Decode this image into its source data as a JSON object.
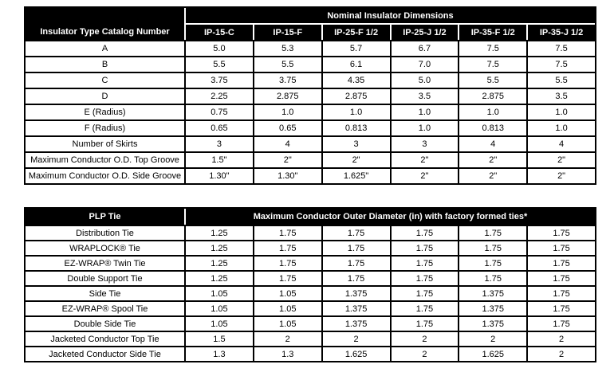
{
  "colors": {
    "header_bg": "#000000",
    "header_text": "#ffffff",
    "body_bg": "#ffffff",
    "body_text": "#000000",
    "border": "#000000"
  },
  "insulator_table": {
    "corner_header": "Insulator Type Catalog Number",
    "group_header": "Nominal Insulator Dimensions",
    "columns": [
      "IP-15-C",
      "IP-15-F",
      "IP-25-F 1/2",
      "IP-25-J 1/2",
      "IP-35-F 1/2",
      "IP-35-J 1/2"
    ],
    "rows": [
      {
        "label": "A",
        "values": [
          "5.0",
          "5.3",
          "5.7",
          "6.7",
          "7.5",
          "7.5"
        ]
      },
      {
        "label": "B",
        "values": [
          "5.5",
          "5.5",
          "6.1",
          "7.0",
          "7.5",
          "7.5"
        ]
      },
      {
        "label": "C",
        "values": [
          "3.75",
          "3.75",
          "4.35",
          "5.0",
          "5.5",
          "5.5"
        ]
      },
      {
        "label": "D",
        "values": [
          "2.25",
          "2.875",
          "2.875",
          "3.5",
          "2.875",
          "3.5"
        ]
      },
      {
        "label": "E (Radius)",
        "values": [
          "0.75",
          "1.0",
          "1.0",
          "1.0",
          "1.0",
          "1.0"
        ]
      },
      {
        "label": "F (Radius)",
        "values": [
          "0.65",
          "0.65",
          "0.813",
          "1.0",
          "0.813",
          "1.0"
        ]
      },
      {
        "label": "Number of Skirts",
        "values": [
          "3",
          "4",
          "3",
          "3",
          "4",
          "4"
        ]
      },
      {
        "label": "Maximum Conductor O.D. Top Groove",
        "values": [
          "1.5\"",
          "2\"",
          "2\"",
          "2\"",
          "2\"",
          "2\""
        ]
      },
      {
        "label": "Maximum Conductor O.D. Side Groove",
        "values": [
          "1.30\"",
          "1.30\"",
          "1.625\"",
          "2\"",
          "2\"",
          "2\""
        ]
      }
    ]
  },
  "tie_table": {
    "corner_header": "PLP Tie",
    "group_header": "Maximum Conductor Outer Diameter (in) with factory formed ties*",
    "rows": [
      {
        "label": "Distribution Tie",
        "values": [
          "1.25",
          "1.75",
          "1.75",
          "1.75",
          "1.75",
          "1.75"
        ]
      },
      {
        "label": "WRAPLOCK® Tie",
        "values": [
          "1.25",
          "1.75",
          "1.75",
          "1.75",
          "1.75",
          "1.75"
        ]
      },
      {
        "label": "EZ-WRAP® Twin Tie",
        "values": [
          "1.25",
          "1.75",
          "1.75",
          "1.75",
          "1.75",
          "1.75"
        ]
      },
      {
        "label": "Double Support Tie",
        "values": [
          "1.25",
          "1.75",
          "1.75",
          "1.75",
          "1.75",
          "1.75"
        ]
      },
      {
        "label": "Side Tie",
        "values": [
          "1.05",
          "1.05",
          "1.375",
          "1.75",
          "1.375",
          "1.75"
        ]
      },
      {
        "label": "EZ-WRAP® Spool Tie",
        "values": [
          "1.05",
          "1.05",
          "1.375",
          "1.75",
          "1.375",
          "1.75"
        ]
      },
      {
        "label": "Double Side Tie",
        "values": [
          "1.05",
          "1.05",
          "1.375",
          "1.75",
          "1.375",
          "1.75"
        ]
      },
      {
        "label": "Jacketed Conductor Top Tie",
        "values": [
          "1.5",
          "2",
          "2",
          "2",
          "2",
          "2"
        ]
      },
      {
        "label": "Jacketed Conductor Side Tie",
        "values": [
          "1.3",
          "1.3",
          "1.625",
          "2",
          "1.625",
          "2"
        ]
      }
    ]
  }
}
